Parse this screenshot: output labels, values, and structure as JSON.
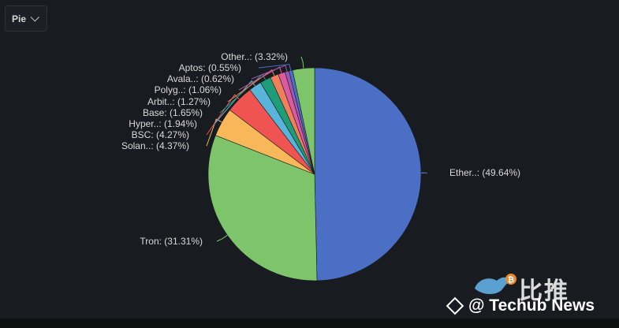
{
  "panel": {
    "type_select_label": "Pie"
  },
  "chart_data": {
    "type": "pie",
    "slices": [
      {
        "label": "Ether..: (49.64%)",
        "value": 49.64,
        "color": "#4a6fc4"
      },
      {
        "label": "Tron: (31.31%)",
        "value": 31.31,
        "color": "#7dc46b"
      },
      {
        "label": "Solan..: (4.37%)",
        "value": 4.37,
        "color": "#f8b85a"
      },
      {
        "label": "BSC: (4.27%)",
        "value": 4.27,
        "color": "#ef5453"
      },
      {
        "label": "Hyper..: (1.94%)",
        "value": 1.94,
        "color": "#5ab3d8"
      },
      {
        "label": "Base: (1.65%)",
        "value": 1.65,
        "color": "#1f9c78"
      },
      {
        "label": "Arbit..: (1.27%)",
        "value": 1.27,
        "color": "#f0805a"
      },
      {
        "label": "Polyg..: (1.06%)",
        "value": 1.06,
        "color": "#dc5aa0"
      },
      {
        "label": "Avala..: (0.62%)",
        "value": 0.62,
        "color": "#9a5ab4"
      },
      {
        "label": "Aptos: (0.55%)",
        "value": 0.55,
        "color": "#4a6fc4"
      },
      {
        "label": "Other..: (3.32%)",
        "value": 3.32,
        "color": "#7dc46b"
      }
    ]
  },
  "watermark": {
    "chinese": "比推",
    "brand": "@ Techub News"
  }
}
